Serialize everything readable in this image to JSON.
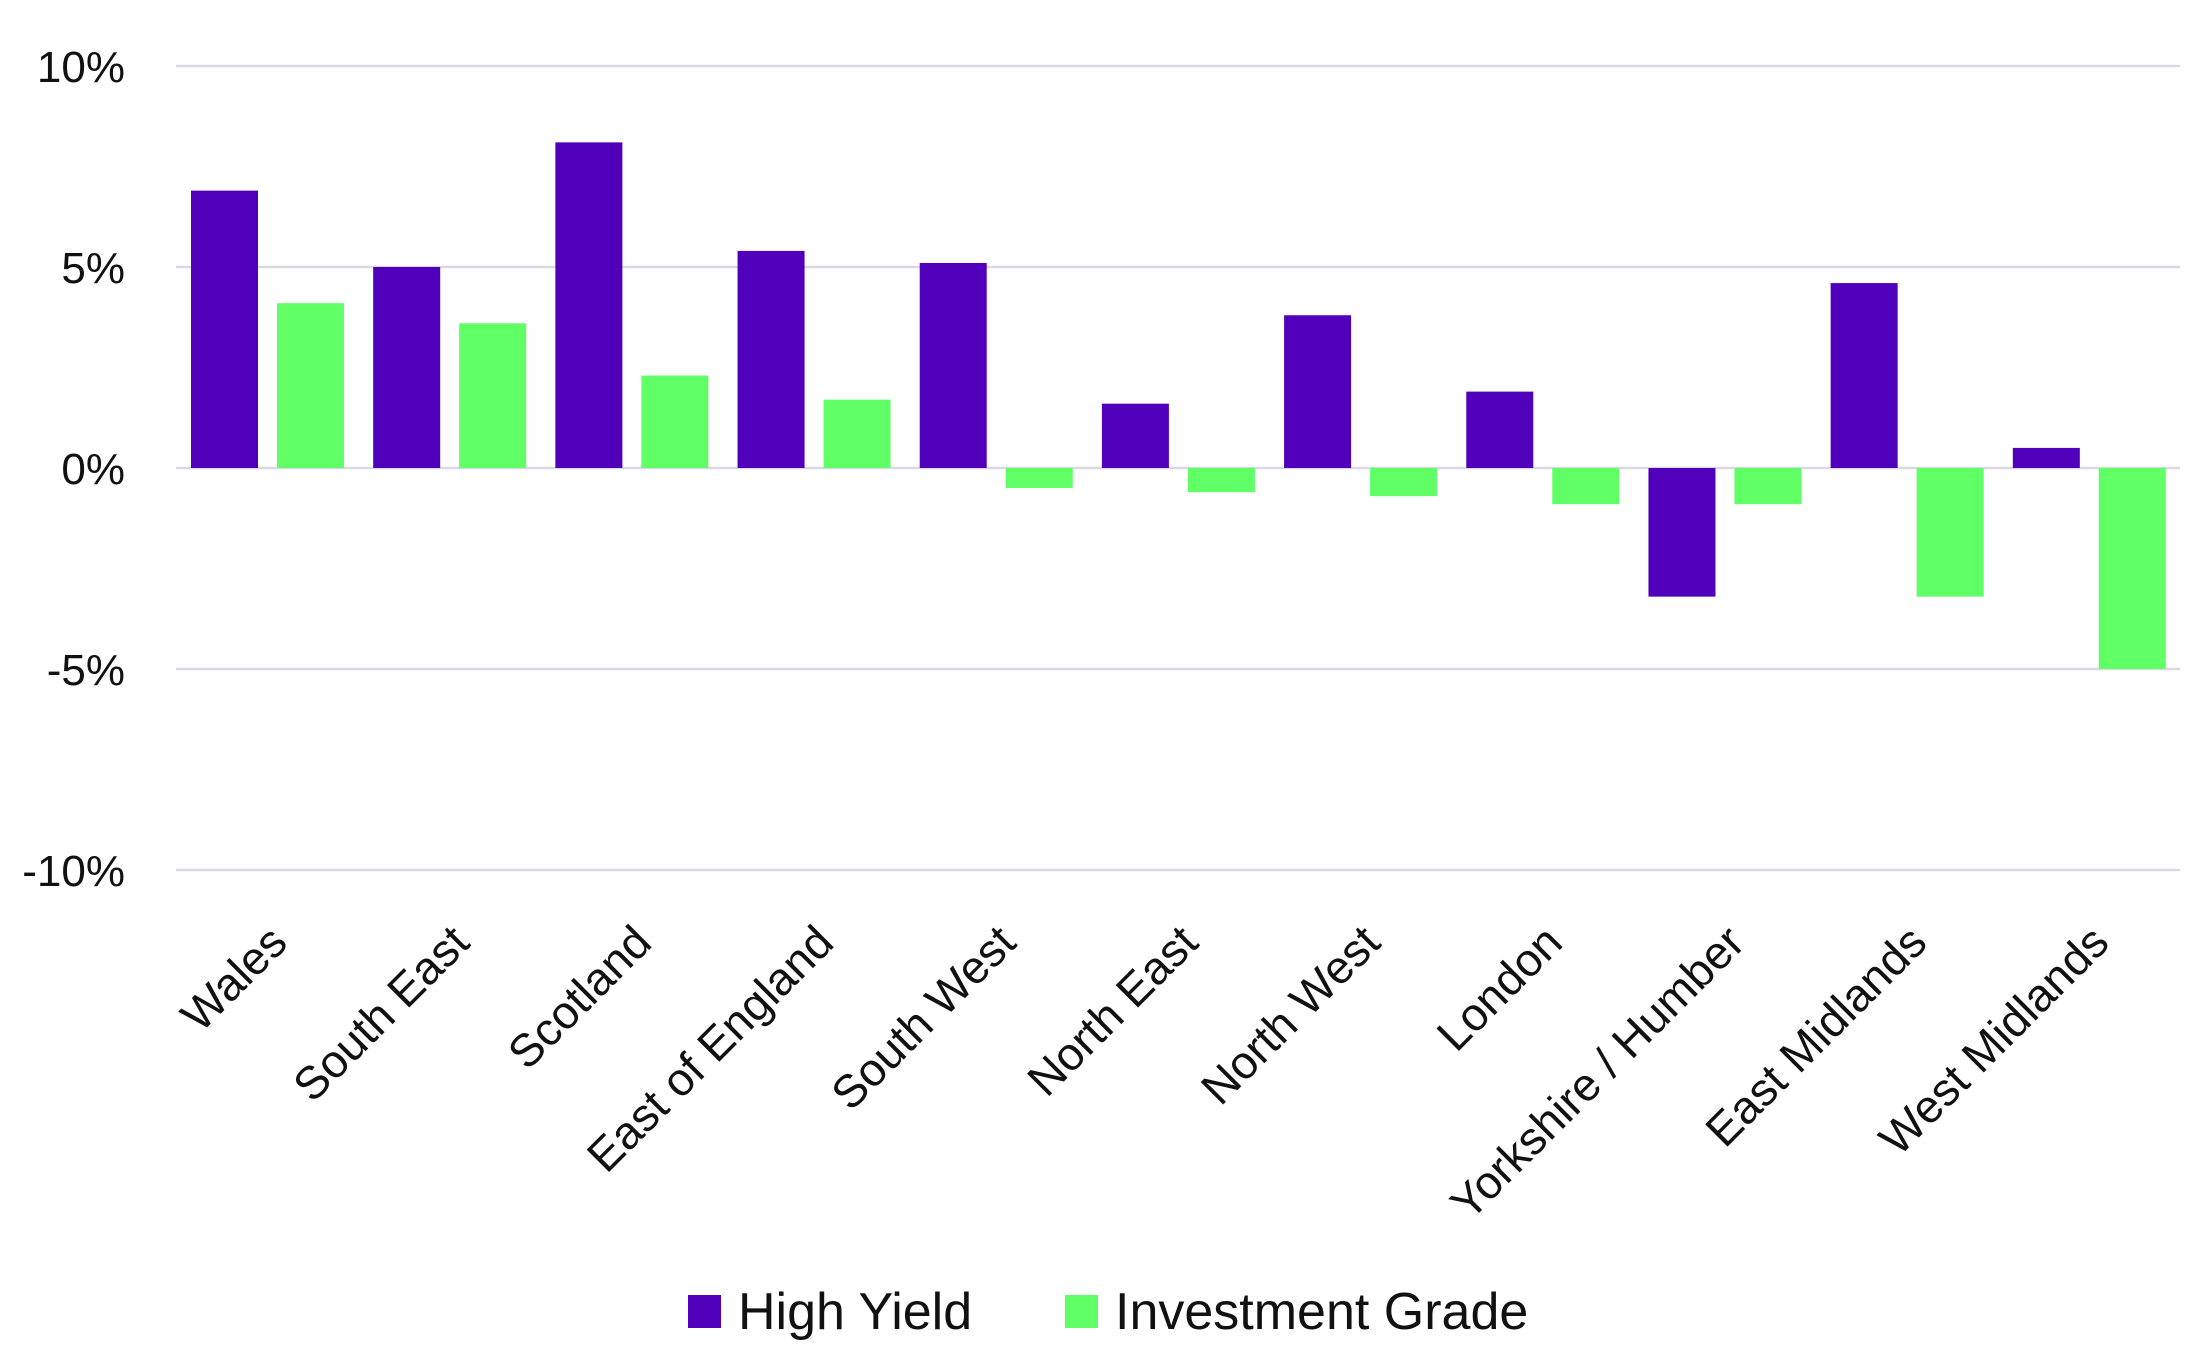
{
  "chart_data": {
    "type": "bar",
    "title": "",
    "xlabel": "",
    "ylabel": "",
    "ylim": [
      -10,
      10
    ],
    "yticks": [
      10,
      5,
      0,
      -5,
      -10
    ],
    "ytick_labels": [
      "10%",
      "5%",
      "0%",
      "-5%",
      "-10%"
    ],
    "grid": true,
    "legend_position": "bottom-center",
    "categories": [
      "Wales",
      "South East",
      "Scotland",
      "East of England",
      "South West",
      "North East",
      "North West",
      "London",
      "Yorkshire / Humber",
      "East Midlands",
      "West Midlands"
    ],
    "series": [
      {
        "name": "High Yield",
        "color": "#5000bb",
        "values": [
          6.9,
          5.0,
          8.1,
          5.4,
          5.1,
          1.6,
          3.8,
          1.9,
          -3.2,
          4.6,
          0.5
        ]
      },
      {
        "name": "Investment Grade",
        "color": "#60ff66",
        "values": [
          4.1,
          3.6,
          2.3,
          1.7,
          -0.5,
          -0.6,
          -0.7,
          -0.9,
          -0.9,
          -3.2,
          -5.0
        ]
      }
    ]
  }
}
